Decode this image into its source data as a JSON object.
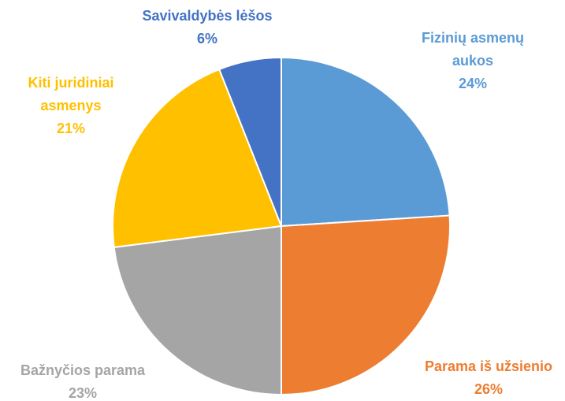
{
  "chart_data": {
    "type": "pie",
    "categories": [
      "Fizinių asmenų aukos",
      "Parama iš užsienio",
      "Bažnyčios parama",
      "Kiti juridiniai asmenys",
      "Savivaldybės lėšos"
    ],
    "values": [
      24,
      26,
      23,
      21,
      6
    ],
    "value_labels": [
      "24%",
      "26%",
      "23%",
      "21%",
      "6%"
    ],
    "colors": [
      "#5b9bd5",
      "#ed7d31",
      "#a5a5a5",
      "#ffc000",
      "#4472c4"
    ]
  }
}
